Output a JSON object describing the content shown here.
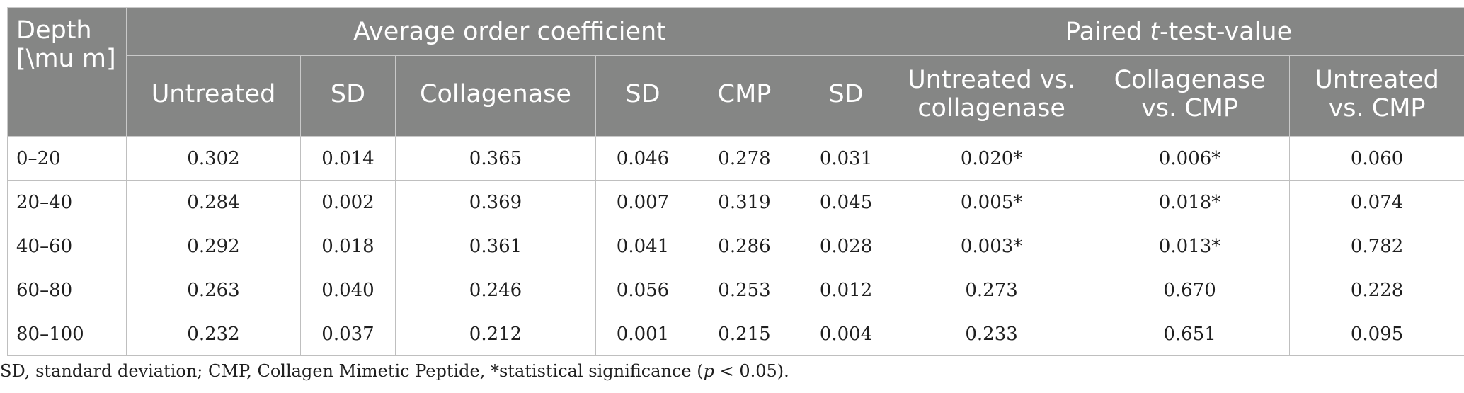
{
  "header": {
    "depth_line1": "Depth",
    "depth_line2": "[\\mu m]",
    "group_order": "Average order coefficient",
    "group_ttest_prefix": "Paired ",
    "group_ttest_t": "t",
    "group_ttest_suffix": "-test-value",
    "columns": [
      {
        "line1": "Untreated",
        "line2": ""
      },
      {
        "line1": "SD",
        "line2": ""
      },
      {
        "line1": "Collagenase",
        "line2": ""
      },
      {
        "line1": "SD",
        "line2": ""
      },
      {
        "line1": "CMP",
        "line2": ""
      },
      {
        "line1": "SD",
        "line2": ""
      },
      {
        "line1": "Untreated vs.",
        "line2": "collagenase"
      },
      {
        "line1": "Collagenase",
        "line2": "vs. CMP"
      },
      {
        "line1": "Untreated",
        "line2": "vs. CMP"
      }
    ]
  },
  "rows": [
    [
      "0–20",
      "0.302",
      "0.014",
      "0.365",
      "0.046",
      "0.278",
      "0.031",
      "0.020*",
      "0.006*",
      "0.060"
    ],
    [
      "20–40",
      "0.284",
      "0.002",
      "0.369",
      "0.007",
      "0.319",
      "0.045",
      "0.005*",
      "0.018*",
      "0.074"
    ],
    [
      "40–60",
      "0.292",
      "0.018",
      "0.361",
      "0.041",
      "0.286",
      "0.028",
      "0.003*",
      "0.013*",
      "0.782"
    ],
    [
      "60–80",
      "0.263",
      "0.040",
      "0.246",
      "0.056",
      "0.253",
      "0.012",
      "0.273",
      "0.670",
      "0.228"
    ],
    [
      "80–100",
      "0.232",
      "0.037",
      "0.212",
      "0.001",
      "0.215",
      "0.004",
      "0.233",
      "0.651",
      "0.095"
    ]
  ],
  "footnote": {
    "prefix": "SD, standard deviation; CMP, Collagen Mimetic Peptide, *statistical significance (",
    "p": "p",
    "suffix": " < 0.05)."
  }
}
